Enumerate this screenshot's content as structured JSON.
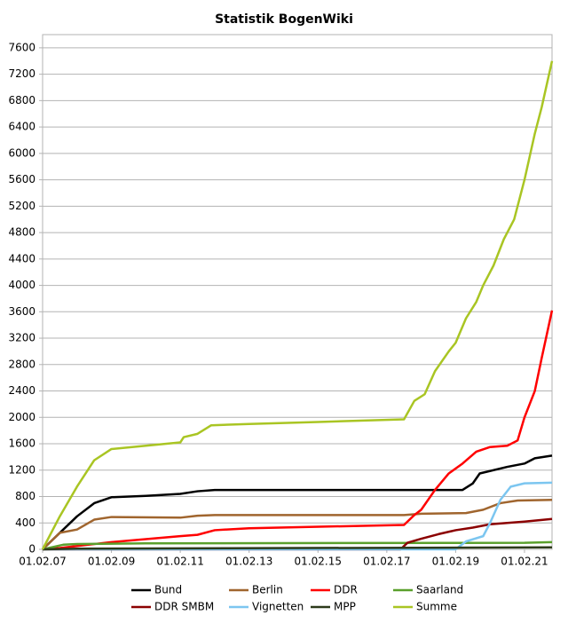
{
  "chart_data": {
    "type": "line",
    "title": "Statistik BogenWiki",
    "xlim": [
      2007,
      2021.8
    ],
    "xticks": [
      {
        "value": 2007,
        "label": "01.02.07"
      },
      {
        "value": 2009,
        "label": "01.02.09"
      },
      {
        "value": 2011,
        "label": "01.02.11"
      },
      {
        "value": 2013,
        "label": "01.02.13"
      },
      {
        "value": 2015,
        "label": "01.02.15"
      },
      {
        "value": 2017,
        "label": "01.02.17"
      },
      {
        "value": 2019,
        "label": "01.02.19"
      },
      {
        "value": 2021,
        "label": "01.02.21"
      }
    ],
    "ylim": [
      0,
      7800
    ],
    "yticks": [
      0,
      400,
      800,
      1200,
      1600,
      2000,
      2400,
      2800,
      3200,
      3600,
      4000,
      4400,
      4800,
      5200,
      5600,
      6000,
      6400,
      6800,
      7200,
      7600
    ],
    "grid": true,
    "legend": "bottom",
    "series": [
      {
        "name": "Bund",
        "color": "#000000",
        "x": [
          2007,
          2007.5,
          2008,
          2008.5,
          2009,
          2010,
          2011,
          2011.5,
          2012,
          2017.5,
          2019.2,
          2019.5,
          2019.7,
          2020.5,
          2021,
          2021.3,
          2021.8
        ],
        "values": [
          0,
          250,
          500,
          700,
          790,
          810,
          840,
          880,
          900,
          900,
          900,
          1000,
          1150,
          1250,
          1300,
          1380,
          1420
        ]
      },
      {
        "name": "Berlin",
        "color": "#a0652e",
        "x": [
          2007,
          2007.5,
          2008,
          2008.5,
          2009,
          2011,
          2011.5,
          2012,
          2017.5,
          2018,
          2019.3,
          2019.8,
          2020.3,
          2020.8,
          2021.8
        ],
        "values": [
          0,
          250,
          300,
          450,
          490,
          480,
          510,
          520,
          520,
          540,
          550,
          600,
          700,
          740,
          750
        ]
      },
      {
        "name": "DDR",
        "color": "#ff0000",
        "x": [
          2007,
          2007.5,
          2009,
          2011,
          2011.5,
          2012,
          2013,
          2017.5,
          2017.8,
          2018,
          2018.4,
          2018.8,
          2019.2,
          2019.6,
          2020,
          2020.5,
          2020.8,
          2021,
          2021.3,
          2021.5,
          2021.8
        ],
        "values": [
          0,
          20,
          110,
          200,
          220,
          290,
          320,
          370,
          520,
          600,
          900,
          1150,
          1300,
          1480,
          1550,
          1570,
          1650,
          2000,
          2400,
          2900,
          3620
        ]
      },
      {
        "name": "Saarland",
        "color": "#5aa02c",
        "x": [
          2007,
          2007.6,
          2008,
          2010,
          2021,
          2021.8
        ],
        "values": [
          0,
          70,
          80,
          90,
          100,
          110
        ]
      },
      {
        "name": "DDR SMBM",
        "color": "#8b0000",
        "x": [
          2007,
          2017.4,
          2017.6,
          2018,
          2018.5,
          2019,
          2019.5,
          2020,
          2020.5,
          2021,
          2021.8
        ],
        "values": [
          0,
          0,
          100,
          160,
          230,
          290,
          330,
          380,
          400,
          420,
          460
        ]
      },
      {
        "name": "Vignetten",
        "color": "#7cc6f0",
        "x": [
          2007,
          2019,
          2019.3,
          2019.8,
          2020,
          2020.3,
          2020.6,
          2021,
          2021.8
        ],
        "values": [
          0,
          0,
          120,
          200,
          400,
          750,
          950,
          1000,
          1010
        ]
      },
      {
        "name": "MPP",
        "color": "#2d3a1a",
        "x": [
          2007,
          2008,
          2021.8
        ],
        "values": [
          0,
          10,
          30
        ]
      },
      {
        "name": "Summe",
        "color": "#a9c523",
        "x": [
          2007,
          2007.5,
          2008,
          2008.5,
          2009,
          2010,
          2011,
          2011.1,
          2011.5,
          2011.9,
          2013,
          2015,
          2017.5,
          2017.8,
          2018.1,
          2018.4,
          2018.8,
          2019,
          2019.3,
          2019.6,
          2019.8,
          2020.1,
          2020.4,
          2020.7,
          2021,
          2021.3,
          2021.5,
          2021.8
        ],
        "values": [
          0,
          500,
          950,
          1350,
          1520,
          1570,
          1620,
          1700,
          1750,
          1880,
          1900,
          1930,
          1970,
          2250,
          2350,
          2700,
          3000,
          3130,
          3500,
          3750,
          4000,
          4300,
          4700,
          5000,
          5600,
          6300,
          6700,
          7400
        ]
      }
    ]
  }
}
